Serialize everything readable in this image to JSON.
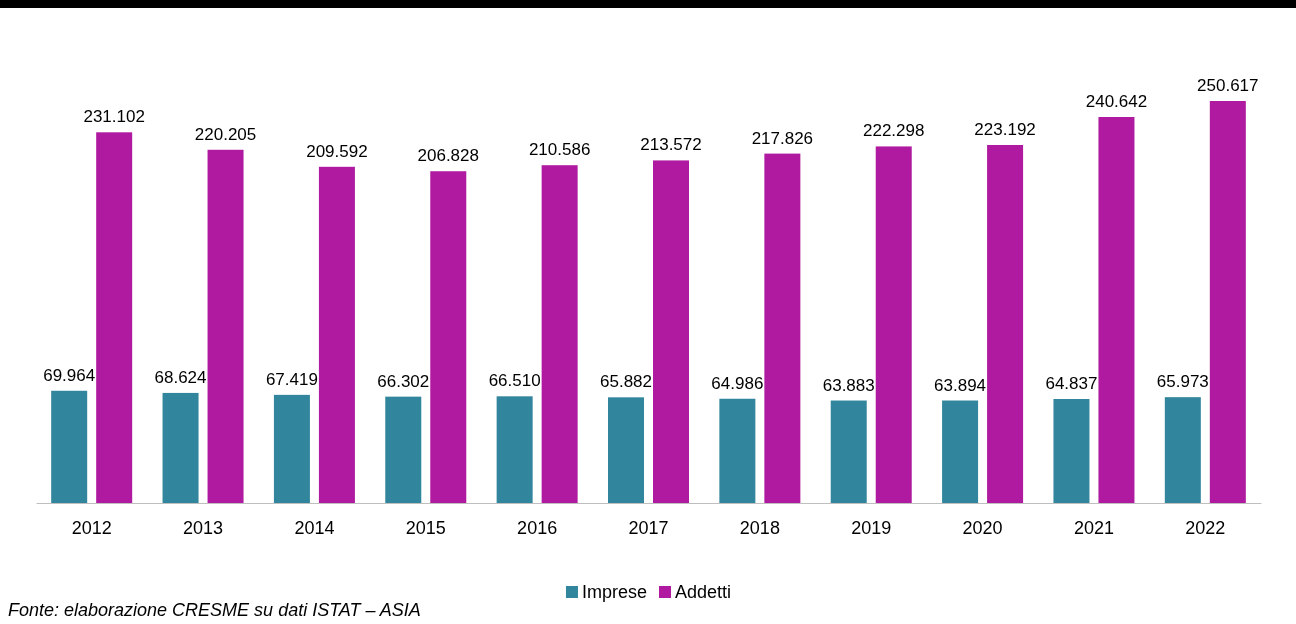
{
  "chart_data": {
    "type": "bar",
    "categories": [
      "2012",
      "2013",
      "2014",
      "2015",
      "2016",
      "2017",
      "2018",
      "2019",
      "2020",
      "2021",
      "2022"
    ],
    "series": [
      {
        "name": "Imprese",
        "color": "#31859c",
        "values": [
          69964,
          68624,
          67419,
          66302,
          66510,
          65882,
          64986,
          63883,
          63894,
          64837,
          65973
        ],
        "value_labels": [
          "69.964",
          "68.624",
          "67.419",
          "66.302",
          "66.510",
          "65.882",
          "64.986",
          "63.883",
          "63.894",
          "64.837",
          "65.973"
        ]
      },
      {
        "name": "Addetti",
        "color": "#b01aa0",
        "values": [
          231102,
          220205,
          209592,
          206828,
          210586,
          213572,
          217826,
          222298,
          223192,
          240642,
          250617
        ],
        "value_labels": [
          "231.102",
          "220.205",
          "209.592",
          "206.828",
          "210.586",
          "213.572",
          "217.826",
          "222.298",
          "223.192",
          "240.642",
          "250.617"
        ]
      }
    ],
    "legend": "bottom",
    "tick_labels": "x",
    "annotations": [
      "Fonte: elaborazione CRESME su dati ISTAT – ASIA"
    ]
  }
}
